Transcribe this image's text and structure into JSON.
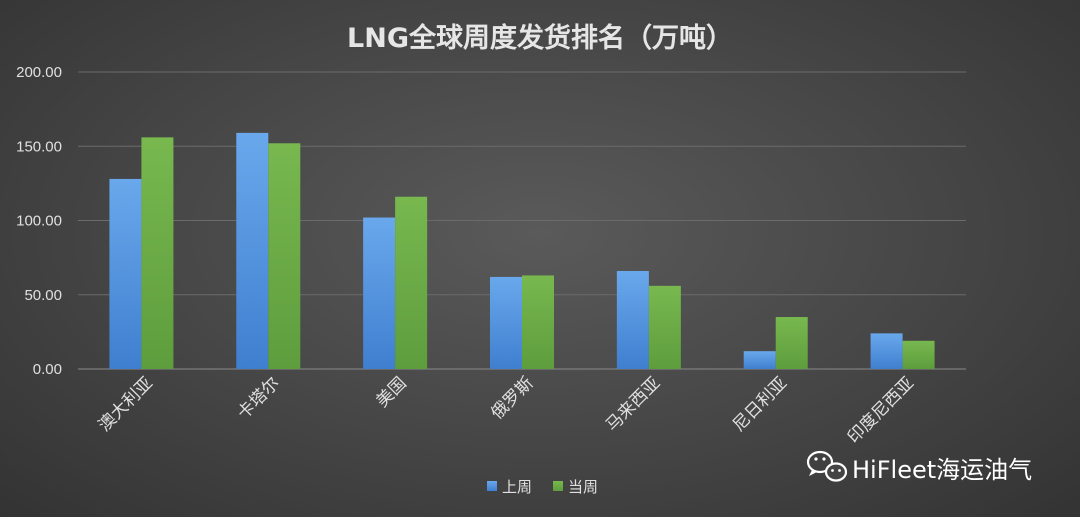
{
  "chart_data": {
    "type": "bar",
    "title": "LNG全球周度发货排名（万吨）",
    "categories": [
      "澳大利亚",
      "卡塔尔",
      "美国",
      "俄罗斯",
      "马来西亚",
      "尼日利亚",
      "印度尼西亚"
    ],
    "series": [
      {
        "name": "上周",
        "color": "#4a8fdc",
        "values": [
          128,
          159,
          102,
          62,
          66,
          12,
          24
        ]
      },
      {
        "name": "当周",
        "color": "#6aab45",
        "values": [
          156,
          152,
          116,
          63,
          56,
          35,
          19
        ]
      }
    ],
    "yticks": [
      "0.00",
      "50.00",
      "100.00",
      "150.00",
      "200.00"
    ],
    "ylim": [
      0,
      200
    ],
    "grid": true,
    "legend_position": "bottom"
  },
  "watermark": {
    "text": "HiFleet海运油气",
    "icon": "wechat-icon"
  }
}
